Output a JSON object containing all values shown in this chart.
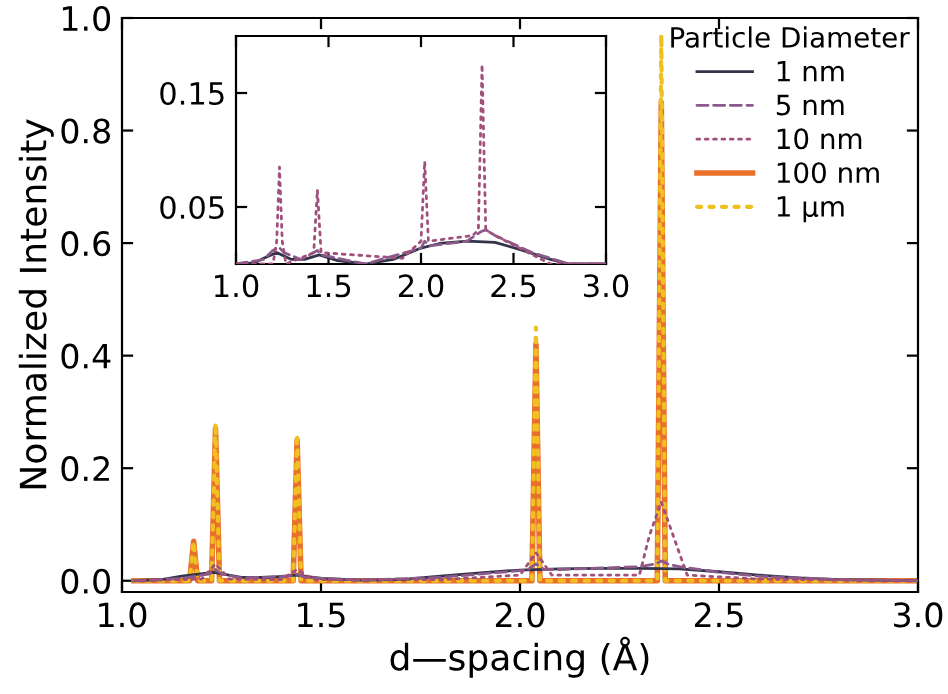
{
  "chart_data": [
    {
      "type": "line",
      "xlabel": "d—spacing (Å)",
      "ylabel": "Normalized Intensity",
      "xlim": [
        1.0,
        3.0
      ],
      "ylim": [
        -0.02,
        1.0
      ],
      "xticks": [
        {
          "value": 1,
          "label": "1.0"
        },
        {
          "value": 1.5,
          "label": "1.5"
        },
        {
          "value": 2,
          "label": "2.0"
        },
        {
          "value": 2.5,
          "label": "2.5"
        },
        {
          "value": 3,
          "label": "3.0"
        }
      ],
      "yticks": [
        {
          "value": 0,
          "label": "0.0"
        },
        0.2,
        0.4,
        0.6,
        0.8,
        {
          "value": 1,
          "label": "1.0"
        }
      ],
      "grid": false,
      "legend": "top right",
      "legend_title": "Particle Diameter",
      "marker": "none",
      "series": [
        {
          "name": "1 nm",
          "color": "#33334a",
          "line_style": "solid",
          "x": [
            1.03,
            1.1,
            1.15,
            1.23,
            1.3,
            1.37,
            1.44,
            1.5,
            1.6,
            1.7,
            1.8,
            1.9,
            2.0,
            2.1,
            2.2,
            2.3,
            2.4,
            2.5,
            2.6,
            2.7,
            2.8,
            2.9,
            3.0
          ],
          "values": [
            0,
            0.002,
            0.008,
            0.015,
            0.006,
            0.006,
            0.01,
            0.004,
            0.001,
            0.002,
            0.008,
            0.014,
            0.019,
            0.021,
            0.022,
            0.022,
            0.021,
            0.016,
            0.01,
            0.005,
            0.002,
            0.001,
            0
          ]
        },
        {
          "name": "5 nm",
          "color": "#8a5a8a",
          "line_style": "dashed",
          "x": [
            1.03,
            1.15,
            1.22,
            1.235,
            1.25,
            1.3,
            1.42,
            1.44,
            1.46,
            1.6,
            1.8,
            2.0,
            2.02,
            2.04,
            2.06,
            2.1,
            2.3,
            2.34,
            2.355,
            2.37,
            2.4,
            2.5,
            2.6,
            2.8,
            3.0
          ],
          "values": [
            0,
            0.004,
            0.012,
            0.02,
            0.012,
            0.005,
            0.008,
            0.012,
            0.006,
            0.001,
            0.006,
            0.018,
            0.02,
            0.03,
            0.02,
            0.02,
            0.025,
            0.03,
            0.035,
            0.03,
            0.025,
            0.015,
            0.008,
            0.002,
            0
          ]
        },
        {
          "name": "10 nm",
          "color": "#a0507a",
          "line_style": "dotted",
          "x": [
            1.03,
            1.2,
            1.235,
            1.27,
            1.4,
            1.44,
            1.48,
            1.8,
            2.0,
            2.04,
            2.08,
            2.3,
            2.325,
            2.355,
            2.385,
            2.42,
            2.6,
            3.0
          ],
          "values": [
            0,
            0.003,
            0.03,
            0.003,
            0.002,
            0.02,
            0.002,
            0.002,
            0.01,
            0.05,
            0.01,
            0.01,
            0.08,
            0.14,
            0.08,
            0.01,
            0.003,
            0
          ]
        },
        {
          "name": "100 nm",
          "color": "#e8702a",
          "line_style": "solid",
          "x": [
            1.03,
            1.17,
            1.18,
            1.19,
            1.225,
            1.235,
            1.245,
            1.43,
            1.44,
            1.45,
            2.03,
            2.04,
            2.05,
            2.345,
            2.355,
            2.365,
            3.0
          ],
          "values": [
            0,
            0,
            0.07,
            0,
            0,
            0.27,
            0,
            0,
            0.25,
            0,
            0,
            0.42,
            0,
            0,
            0.85,
            0,
            0
          ]
        },
        {
          "name": "1 μm",
          "color": "#f0c020",
          "line_style": "dotted",
          "x": [
            1.03,
            1.17,
            1.18,
            1.19,
            1.225,
            1.235,
            1.245,
            1.43,
            1.44,
            1.45,
            2.03,
            2.04,
            2.05,
            2.345,
            2.355,
            2.365,
            3.0
          ],
          "values": [
            0,
            0,
            0.07,
            0,
            0,
            0.28,
            0,
            0,
            0.26,
            0,
            0,
            0.45,
            0,
            0,
            0.97,
            0,
            0
          ]
        }
      ]
    },
    {
      "type": "line",
      "xlim": [
        1.0,
        3.0
      ],
      "ylim": [
        0.0,
        0.2
      ],
      "xticks": [
        {
          "value": 1,
          "label": "1.0"
        },
        {
          "value": 1.5,
          "label": "1.5"
        },
        {
          "value": 2,
          "label": "2.0"
        },
        {
          "value": 2.5,
          "label": "2.5"
        },
        {
          "value": 3,
          "label": "3.0"
        }
      ],
      "yticks": [
        0.05,
        0.15
      ],
      "grid": false,
      "marker": "none",
      "series": [
        {
          "color": "#33334a",
          "line_style": "solid",
          "x": [
            1.0,
            1.1,
            1.15,
            1.22,
            1.3,
            1.37,
            1.45,
            1.55,
            1.7,
            1.85,
            2.0,
            2.1,
            2.25,
            2.4,
            2.55,
            2.7,
            2.8,
            2.9,
            3.0
          ],
          "values": [
            0,
            0.001,
            0.005,
            0.01,
            0.004,
            0.004,
            0.008,
            0.003,
            0,
            0.004,
            0.014,
            0.018,
            0.02,
            0.019,
            0.012,
            0.004,
            0,
            0,
            0
          ]
        },
        {
          "color": "#8a5a8a",
          "line_style": "dashed",
          "x": [
            1.0,
            1.15,
            1.2,
            1.23,
            1.26,
            1.35,
            1.42,
            1.44,
            1.46,
            1.7,
            2.0,
            2.02,
            2.05,
            2.25,
            2.32,
            2.35,
            2.4,
            2.6,
            2.8,
            3.0
          ],
          "values": [
            0,
            0.004,
            0.012,
            0.015,
            0.01,
            0.004,
            0.01,
            0.012,
            0.008,
            0,
            0.014,
            0.02,
            0.016,
            0.02,
            0.028,
            0.03,
            0.025,
            0.01,
            0,
            0
          ]
        },
        {
          "color": "#a0507a",
          "line_style": "dotted",
          "x": [
            1.0,
            1.2,
            1.22,
            1.235,
            1.25,
            1.27,
            1.42,
            1.44,
            1.46,
            1.9,
            2.0,
            2.02,
            2.04,
            2.28,
            2.31,
            2.33,
            2.35,
            2.4,
            2.7,
            3.0
          ],
          "values": [
            0,
            0,
            0.02,
            0.085,
            0.02,
            0,
            0.01,
            0.065,
            0.01,
            0.005,
            0.02,
            0.09,
            0.02,
            0.025,
            0.03,
            0.175,
            0.03,
            0.025,
            0,
            0
          ]
        }
      ]
    }
  ]
}
